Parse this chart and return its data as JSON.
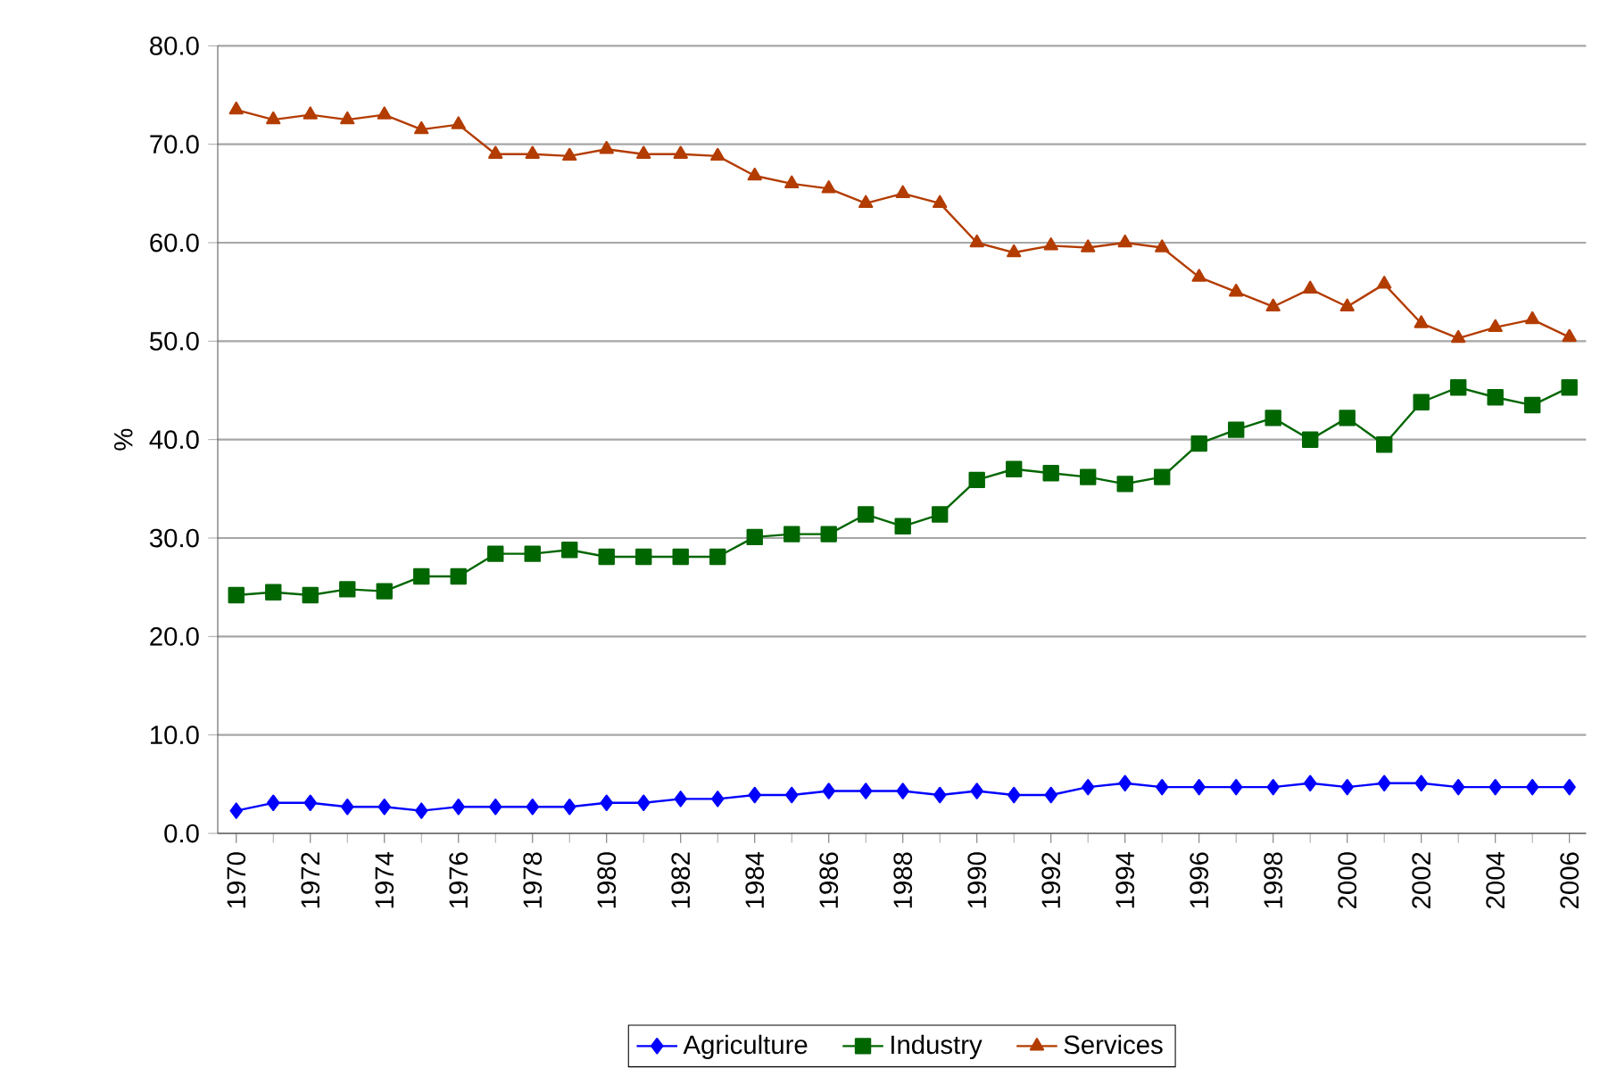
{
  "chart_data": {
    "type": "line",
    "ylabel": "%",
    "categories": [
      "1970",
      null,
      "1972",
      null,
      "1974",
      null,
      "1976",
      null,
      "1978",
      null,
      "1980",
      null,
      "1982",
      null,
      "1984",
      null,
      "1986",
      null,
      "1988",
      null,
      "1990",
      null,
      "1992",
      null,
      "1994",
      null,
      "1996",
      null,
      "1998",
      null,
      "2000",
      null,
      "2002",
      null,
      "2004",
      null,
      "2006"
    ],
    "series": [
      {
        "name": "Agriculture",
        "color": "#0000ff",
        "marker": "diamond",
        "values": [
          2.3,
          3.1,
          3.1,
          2.7,
          2.7,
          2.3,
          2.7,
          2.7,
          2.7,
          2.7,
          3.1,
          3.1,
          3.5,
          3.5,
          3.9,
          3.9,
          4.3,
          4.3,
          4.3,
          3.9,
          4.3,
          3.9,
          3.9,
          4.7,
          5.1,
          4.7,
          4.7,
          4.7,
          4.7,
          5.1,
          4.7,
          5.1,
          5.1,
          4.7,
          4.7,
          4.7,
          4.7
        ]
      },
      {
        "name": "Industry",
        "color": "#006600",
        "marker": "square",
        "values": [
          24.2,
          24.5,
          24.2,
          24.8,
          24.6,
          26.1,
          26.1,
          28.4,
          28.4,
          28.8,
          28.1,
          28.1,
          28.1,
          28.1,
          30.1,
          30.4,
          30.4,
          32.4,
          31.2,
          32.4,
          35.9,
          37.0,
          36.6,
          36.2,
          35.5,
          36.2,
          39.6,
          41.0,
          42.2,
          40.0,
          42.2,
          39.5,
          43.8,
          45.3,
          44.3,
          43.5,
          45.3
        ]
      },
      {
        "name": "Services",
        "color": "#b33c00",
        "marker": "triangle",
        "values": [
          73.5,
          72.5,
          73.0,
          72.5,
          73.0,
          71.5,
          72.0,
          69.0,
          69.0,
          68.8,
          69.5,
          69.0,
          69.0,
          68.8,
          66.8,
          66.0,
          65.5,
          64.0,
          65.0,
          64.0,
          60.0,
          59.0,
          59.7,
          59.5,
          60.0,
          59.5,
          56.5,
          55.0,
          53.5,
          55.3,
          53.5,
          55.8,
          51.8,
          50.3,
          51.4,
          52.2,
          50.4
        ]
      }
    ],
    "ylim": [
      0,
      80
    ],
    "yticks": [
      {
        "value": 0,
        "label": "0.0"
      },
      {
        "value": 10,
        "label": "10.0"
      },
      {
        "value": 20,
        "label": "20.0"
      },
      {
        "value": 30,
        "label": "30.0"
      },
      {
        "value": 40,
        "label": "40.0"
      },
      {
        "value": 50,
        "label": "50.0"
      },
      {
        "value": 60,
        "label": "60.0"
      },
      {
        "value": 70,
        "label": "70.0"
      },
      {
        "value": 80,
        "label": "80.0"
      }
    ],
    "grid": "y",
    "legend": "bottom",
    "line_style": "solid"
  }
}
